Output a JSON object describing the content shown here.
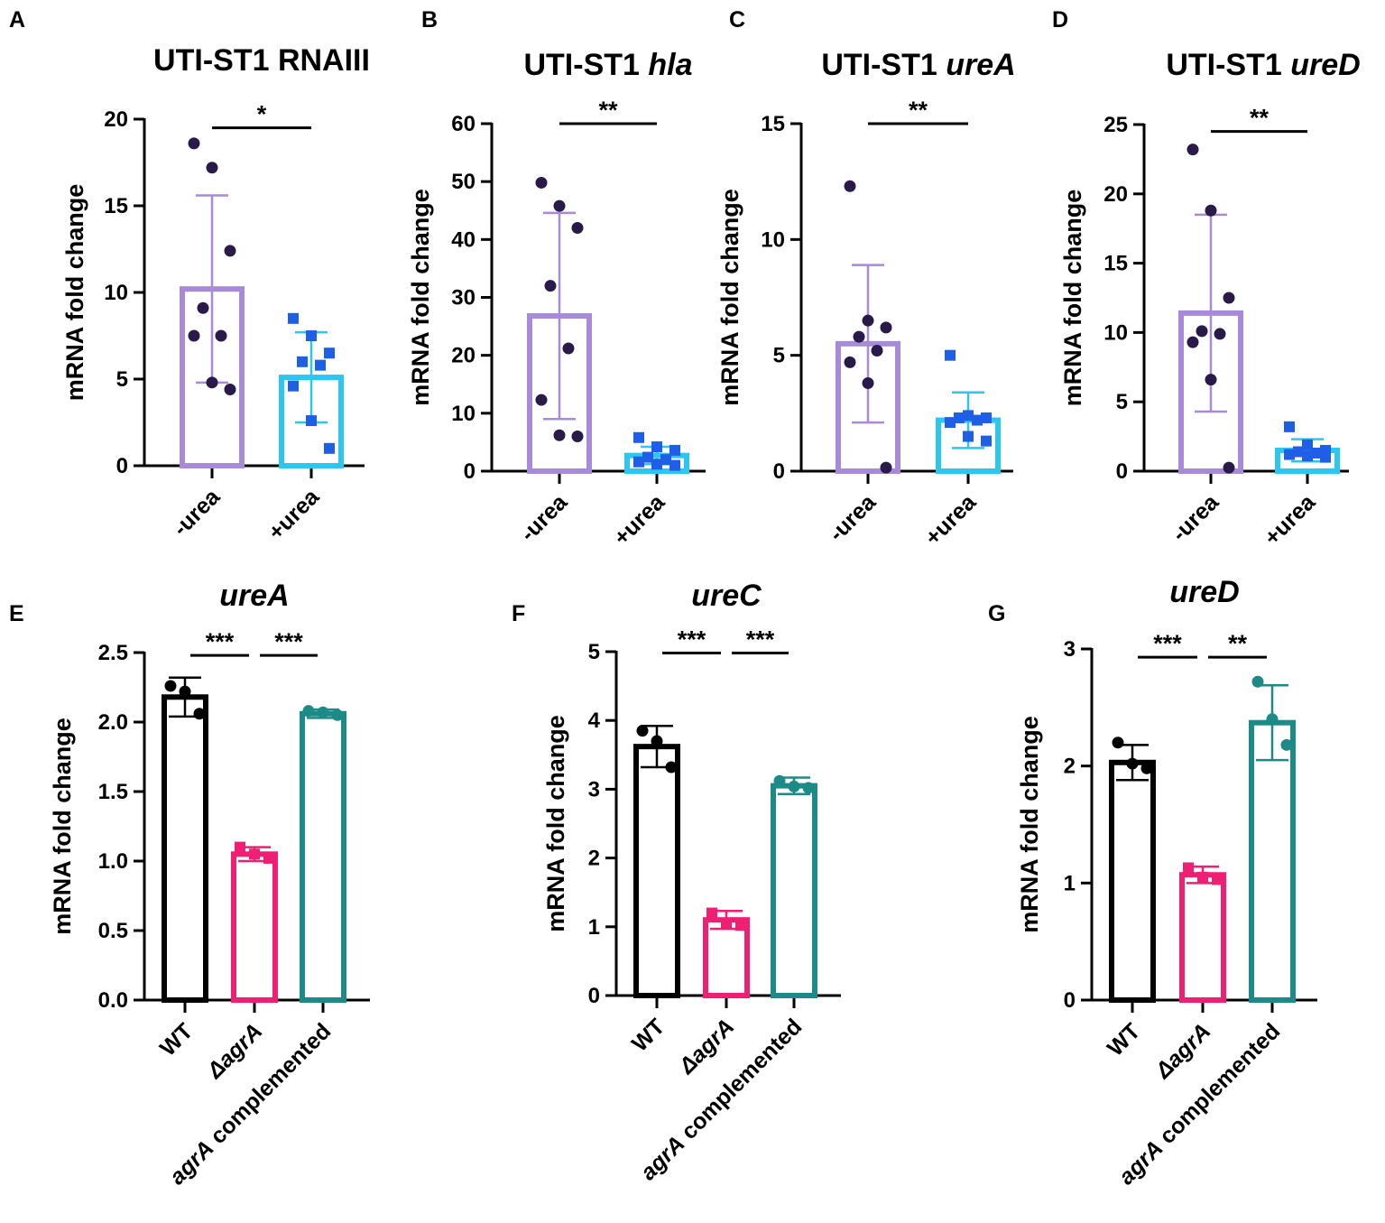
{
  "colors": {
    "purple": "#a78bd9",
    "dark_dot": "#2a1a4a",
    "cyan": "#2cc7f0",
    "blue_sq": "#1f5ee6",
    "black": "#000000",
    "magenta": "#ef1f74",
    "teal": "#1c8a86"
  },
  "chart_data": [
    {
      "panel": "A",
      "type": "bar",
      "title_parts": [
        {
          "text": "UTI-ST1 RNAIII",
          "italic": false
        }
      ],
      "ylabel": "mRNA fold change",
      "ylim": [
        0,
        20
      ],
      "yticks": [
        "0",
        "5",
        "10",
        "15",
        "20"
      ],
      "categories": [
        {
          "parts": [
            {
              "text": "-urea",
              "italic": false
            }
          ]
        },
        {
          "parts": [
            {
              "text": "+urea",
              "italic": false
            }
          ]
        }
      ],
      "means": [
        10.2,
        5.1
      ],
      "sd": [
        5.4,
        2.6
      ],
      "points": [
        [
          18.6,
          17.2,
          12.4,
          9.1,
          7.5,
          7.5,
          4.8,
          4.4
        ],
        [
          8.5,
          7.5,
          6.5,
          6.0,
          5.8,
          4.6,
          2.6,
          1.0
        ]
      ],
      "markers": [
        "circle",
        "square"
      ],
      "bar_colors": [
        "purple",
        "cyan"
      ],
      "point_colors": [
        "dark_dot",
        "blue_sq"
      ],
      "significance": [
        {
          "from": 0,
          "to": 1,
          "label": "*",
          "y": 19.5
        }
      ]
    },
    {
      "panel": "B",
      "type": "bar",
      "title_parts": [
        {
          "text": "UTI-ST1 ",
          "italic": false
        },
        {
          "text": "hla",
          "italic": true
        }
      ],
      "ylabel": "mRNA fold change",
      "ylim": [
        0,
        60
      ],
      "yticks": [
        "0",
        "10",
        "20",
        "30",
        "40",
        "50",
        "60"
      ],
      "categories": [
        {
          "parts": [
            {
              "text": "-urea",
              "italic": false
            }
          ]
        },
        {
          "parts": [
            {
              "text": "+urea",
              "italic": false
            }
          ]
        }
      ],
      "means": [
        26.8,
        2.7
      ],
      "sd": [
        17.8,
        1.5
      ],
      "points": [
        [
          49.8,
          45.8,
          42.0,
          32.0,
          21.2,
          12.3,
          6.2,
          6.0
        ],
        [
          5.8,
          4.2,
          3.6,
          2.4,
          2.0,
          1.6,
          1.2,
          1.0
        ]
      ],
      "markers": [
        "circle",
        "square"
      ],
      "bar_colors": [
        "purple",
        "cyan"
      ],
      "point_colors": [
        "dark_dot",
        "blue_sq"
      ],
      "significance": [
        {
          "from": 0,
          "to": 1,
          "label": "**",
          "y": 60
        }
      ]
    },
    {
      "panel": "C",
      "type": "bar",
      "title_parts": [
        {
          "text": "UTI-ST1 ",
          "italic": false
        },
        {
          "text": "ureA",
          "italic": true
        }
      ],
      "ylabel": "mRNA fold change",
      "ylim": [
        0,
        15
      ],
      "yticks": [
        "0",
        "5",
        "10",
        "15"
      ],
      "categories": [
        {
          "parts": [
            {
              "text": "-urea",
              "italic": false
            }
          ]
        },
        {
          "parts": [
            {
              "text": "+urea",
              "italic": false
            }
          ]
        }
      ],
      "means": [
        5.5,
        2.2
      ],
      "sd": [
        3.4,
        1.2
      ],
      "points": [
        [
          12.3,
          6.5,
          6.2,
          5.8,
          5.2,
          4.7,
          3.8,
          0.15
        ],
        [
          5.0,
          2.4,
          2.3,
          2.3,
          2.2,
          2.1,
          1.5,
          1.3
        ]
      ],
      "markers": [
        "circle",
        "square"
      ],
      "bar_colors": [
        "purple",
        "cyan"
      ],
      "point_colors": [
        "dark_dot",
        "blue_sq"
      ],
      "significance": [
        {
          "from": 0,
          "to": 1,
          "label": "**",
          "y": 15
        }
      ]
    },
    {
      "panel": "D",
      "type": "bar",
      "title_parts": [
        {
          "text": "UTI-ST1 ",
          "italic": false
        },
        {
          "text": "ureD",
          "italic": true
        }
      ],
      "ylabel": "mRNA fold change",
      "ylim": [
        0,
        25
      ],
      "yticks": [
        "0",
        "5",
        "10",
        "15",
        "20",
        "25"
      ],
      "categories": [
        {
          "parts": [
            {
              "text": "-urea",
              "italic": false
            }
          ]
        },
        {
          "parts": [
            {
              "text": "+urea",
              "italic": false
            }
          ]
        }
      ],
      "means": [
        11.4,
        1.5
      ],
      "sd": [
        7.1,
        0.8
      ],
      "points": [
        [
          23.2,
          18.8,
          12.5,
          10.1,
          9.9,
          9.3,
          6.6,
          0.25
        ],
        [
          3.2,
          1.9,
          1.5,
          1.4,
          1.3,
          1.2,
          1.1,
          1.0
        ]
      ],
      "markers": [
        "circle",
        "square"
      ],
      "bar_colors": [
        "purple",
        "cyan"
      ],
      "point_colors": [
        "dark_dot",
        "blue_sq"
      ],
      "significance": [
        {
          "from": 0,
          "to": 1,
          "label": "**",
          "y": 24.5
        }
      ]
    },
    {
      "panel": "E",
      "type": "bar",
      "title_parts": [
        {
          "text": "ureA",
          "italic": true
        }
      ],
      "ylabel": "mRNA fold change",
      "ylim": [
        0,
        2.5
      ],
      "yticks": [
        "0.0",
        "0.5",
        "1.0",
        "1.5",
        "2.0",
        "2.5"
      ],
      "categories": [
        {
          "parts": [
            {
              "text": "WT",
              "italic": false
            }
          ]
        },
        {
          "parts": [
            {
              "text": "ΔagrA",
              "italic": true
            }
          ]
        },
        {
          "parts": [
            {
              "text": "agrA",
              "italic": true
            },
            {
              "text": " complemented",
              "italic": false
            }
          ]
        }
      ],
      "means": [
        2.18,
        1.05,
        2.06
      ],
      "sd": [
        0.14,
        0.05,
        0.03
      ],
      "points": [
        [
          2.26,
          2.22,
          2.06
        ],
        [
          1.1,
          1.05,
          1.02
        ],
        [
          2.08,
          2.07,
          2.05
        ]
      ],
      "markers": [
        "circle",
        "square",
        "circle"
      ],
      "bar_colors": [
        "black",
        "magenta",
        "teal"
      ],
      "point_colors": [
        "black",
        "magenta",
        "teal"
      ],
      "significance": [
        {
          "from": 0,
          "to": 1,
          "label": "***",
          "y": 2.48
        },
        {
          "from": 1,
          "to": 2,
          "label": "***",
          "y": 2.48
        }
      ]
    },
    {
      "panel": "F",
      "type": "bar",
      "title_parts": [
        {
          "text": "ureC",
          "italic": true
        }
      ],
      "ylabel": "mRNA fold change",
      "ylim": [
        0,
        5
      ],
      "yticks": [
        "0",
        "1",
        "2",
        "3",
        "4",
        "5"
      ],
      "categories": [
        {
          "parts": [
            {
              "text": "WT",
              "italic": false
            }
          ]
        },
        {
          "parts": [
            {
              "text": "ΔagrA",
              "italic": true
            }
          ]
        },
        {
          "parts": [
            {
              "text": "agrA",
              "italic": true
            },
            {
              "text": " complemented",
              "italic": false
            }
          ]
        }
      ],
      "means": [
        3.62,
        1.1,
        3.05
      ],
      "sd": [
        0.3,
        0.13,
        0.12
      ],
      "points": [
        [
          3.85,
          3.7,
          3.32
        ],
        [
          1.2,
          1.05,
          1.02
        ],
        [
          3.12,
          3.04,
          3.02
        ]
      ],
      "markers": [
        "circle",
        "square",
        "circle"
      ],
      "bar_colors": [
        "black",
        "magenta",
        "teal"
      ],
      "point_colors": [
        "black",
        "magenta",
        "teal"
      ],
      "significance": [
        {
          "from": 0,
          "to": 1,
          "label": "***",
          "y": 4.98
        },
        {
          "from": 1,
          "to": 2,
          "label": "***",
          "y": 4.98
        }
      ]
    },
    {
      "panel": "G",
      "type": "bar",
      "title_parts": [
        {
          "text": "ureD",
          "italic": true
        }
      ],
      "ylabel": "mRNA fold change",
      "ylim": [
        0,
        3
      ],
      "yticks": [
        "0",
        "1",
        "2",
        "3"
      ],
      "categories": [
        {
          "parts": [
            {
              "text": "WT",
              "italic": false
            }
          ]
        },
        {
          "parts": [
            {
              "text": "ΔagrA",
              "italic": true
            }
          ]
        },
        {
          "parts": [
            {
              "text": "agrA",
              "italic": true
            },
            {
              "text": " complemented",
              "italic": false
            }
          ]
        }
      ],
      "means": [
        2.03,
        1.07,
        2.37
      ],
      "sd": [
        0.15,
        0.07,
        0.32
      ],
      "points": [
        [
          2.2,
          2.02,
          1.98
        ],
        [
          1.13,
          1.05,
          1.03
        ],
        [
          2.72,
          2.4,
          2.18
        ]
      ],
      "markers": [
        "circle",
        "square",
        "circle"
      ],
      "bar_colors": [
        "black",
        "magenta",
        "teal"
      ],
      "point_colors": [
        "black",
        "magenta",
        "teal"
      ],
      "significance": [
        {
          "from": 0,
          "to": 1,
          "label": "***",
          "y": 2.93
        },
        {
          "from": 1,
          "to": 2,
          "label": "**",
          "y": 2.93
        }
      ]
    }
  ]
}
